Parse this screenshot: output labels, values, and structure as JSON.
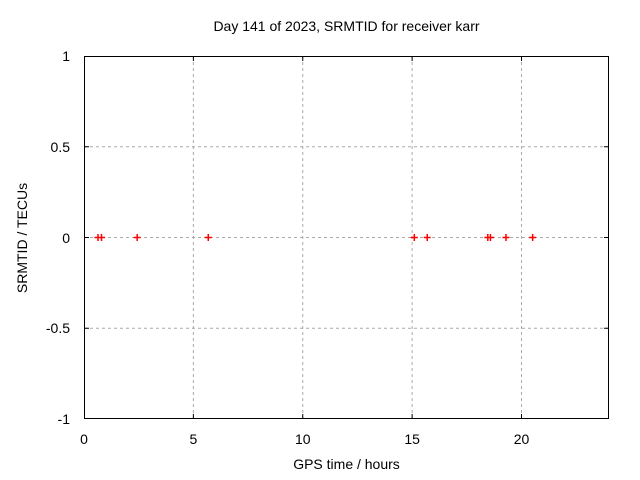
{
  "chart_data": {
    "type": "scatter",
    "title": "Day 141 of 2023, SRMTID for receiver karr",
    "xlabel": "GPS time / hours",
    "ylabel": "SRMTID / TECUs",
    "xlim": [
      0,
      24
    ],
    "ylim": [
      -1,
      1
    ],
    "grid": true,
    "legend": "none",
    "xticks": [
      {
        "value": 0,
        "label": "0"
      },
      {
        "value": 5,
        "label": "5"
      },
      {
        "value": 10,
        "label": "10"
      },
      {
        "value": 15,
        "label": "15"
      },
      {
        "value": 20,
        "label": "20"
      }
    ],
    "yticks": [
      {
        "value": -1,
        "label": "-1"
      },
      {
        "value": -0.5,
        "label": "-0.5"
      },
      {
        "value": 0,
        "label": "0"
      },
      {
        "value": 0.5,
        "label": "0.5"
      },
      {
        "value": 1,
        "label": "1"
      }
    ],
    "series": [
      {
        "marker": "plus",
        "color": "#ff0000",
        "points": [
          {
            "x": 0.64,
            "y": 0
          },
          {
            "x": 0.8,
            "y": 0
          },
          {
            "x": 2.43,
            "y": 0
          },
          {
            "x": 5.68,
            "y": 0
          },
          {
            "x": 15.1,
            "y": 0
          },
          {
            "x": 15.69,
            "y": 0
          },
          {
            "x": 18.46,
            "y": 0
          },
          {
            "x": 18.58,
            "y": 0
          },
          {
            "x": 19.29,
            "y": 0
          },
          {
            "x": 20.51,
            "y": 0
          }
        ]
      }
    ],
    "colors": {
      "background": "#ffffff",
      "frame": "#000000",
      "grid": "#aaaaaa",
      "text": "#000000",
      "marker": "#ff0000"
    }
  }
}
